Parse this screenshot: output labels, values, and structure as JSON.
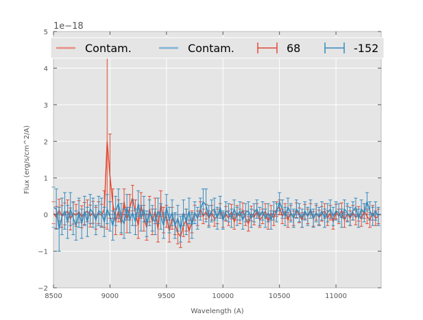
{
  "chart_data": {
    "type": "line",
    "title": "",
    "xlabel": "Wavelength (A)",
    "ylabel": "Flux (erg/s/cm^2/A)",
    "offset_label": "1e−18",
    "xlim": [
      8500,
      11400
    ],
    "ylim": [
      -2,
      5
    ],
    "xticks": [
      8500,
      9000,
      9500,
      10000,
      10500,
      11000
    ],
    "xtick_labels": [
      "8500",
      "9000",
      "9500",
      "10000",
      "10500",
      "11000"
    ],
    "yticks": [
      -2,
      -1,
      0,
      1,
      2,
      3,
      4,
      5
    ],
    "ytick_labels": [
      "−2",
      "−1",
      "0",
      "1",
      "2",
      "3",
      "4",
      "5"
    ],
    "grid": true,
    "legend_position": "top",
    "colors": {
      "red": "#e24a33",
      "blue": "#348abd",
      "red_light": "#e88d7d",
      "blue_light": "#7fb2d6"
    },
    "legend": [
      {
        "label": "Contam.",
        "kind": "line",
        "color": "#e88d7d"
      },
      {
        "label": "Contam.",
        "kind": "line",
        "color": "#7fb2d6"
      },
      {
        "label": "68",
        "kind": "errorbar",
        "color": "#e24a33"
      },
      {
        "label": "-152",
        "kind": "errorbar",
        "color": "#348abd"
      }
    ],
    "series": [
      {
        "name": "68",
        "color": "#e24a33",
        "x": [
          8500,
          8525,
          8550,
          8575,
          8600,
          8625,
          8650,
          8675,
          8700,
          8725,
          8750,
          8775,
          8800,
          8825,
          8850,
          8875,
          8900,
          8925,
          8950,
          8975,
          9000,
          9025,
          9050,
          9075,
          9100,
          9125,
          9150,
          9175,
          9200,
          9225,
          9250,
          9275,
          9300,
          9325,
          9350,
          9375,
          9400,
          9425,
          9450,
          9475,
          9500,
          9525,
          9550,
          9575,
          9600,
          9625,
          9650,
          9675,
          9700,
          9725,
          9750,
          9775,
          9800,
          9825,
          9850,
          9875,
          9900,
          9925,
          9950,
          9975,
          10000,
          10025,
          10050,
          10075,
          10100,
          10125,
          10150,
          10175,
          10200,
          10225,
          10250,
          10275,
          10300,
          10325,
          10350,
          10375,
          10400,
          10425,
          10450,
          10475,
          10500,
          10525,
          10550,
          10575,
          10600,
          10625,
          10650,
          10675,
          10700,
          10725,
          10750,
          10775,
          10800,
          10825,
          10850,
          10875,
          10900,
          10925,
          10950,
          10975,
          11000,
          11025,
          11050,
          11075,
          11100,
          11125,
          11150,
          11175,
          11200,
          11225,
          11250,
          11275,
          11300,
          11325,
          11350,
          11375
        ],
        "y": [
          0.05,
          -0.08,
          0.12,
          -0.05,
          0.02,
          0.1,
          -0.12,
          0.04,
          -0.02,
          0.08,
          -0.06,
          0.03,
          0.1,
          -0.04,
          0.06,
          -0.1,
          0.05,
          -0.02,
          0.15,
          2.0,
          1.05,
          0.3,
          -0.2,
          0.1,
          -0.25,
          0.35,
          -0.15,
          0.2,
          0.45,
          0.05,
          -0.3,
          0.25,
          -0.1,
          -0.35,
          0.15,
          -0.2,
          0.1,
          -0.4,
          0.3,
          -0.15,
          -0.05,
          -0.45,
          -0.1,
          -0.25,
          -0.5,
          -0.6,
          -0.3,
          -0.15,
          -0.45,
          -0.2,
          0.05,
          -0.1,
          0.15,
          -0.05,
          0.08,
          -0.1,
          0.05,
          -0.12,
          -0.05,
          0.1,
          -0.15,
          0.02,
          -0.1,
          0.08,
          -0.2,
          0.05,
          -0.05,
          0.12,
          -0.1,
          -0.25,
          0.03,
          -0.08,
          0.1,
          -0.15,
          -0.05,
          0.1,
          -0.2,
          0.05,
          -0.1,
          0.15,
          0.2,
          -0.05,
          0.1,
          -0.15,
          0.05,
          -0.1,
          0.12,
          -0.02,
          -0.15,
          0.08,
          -0.05,
          0.1,
          -0.12,
          0.05,
          -0.08,
          0.02,
          0.1,
          -0.1,
          0.05,
          -0.2,
          0.08,
          -0.05,
          0.12,
          -0.15,
          0.03,
          -0.1,
          0.05,
          -0.08,
          0.02,
          -0.12,
          0.1,
          -0.05,
          -0.15,
          0.05,
          -0.1,
          -0.05
        ],
        "err": [
          0.3,
          0.3,
          0.3,
          0.3,
          0.3,
          0.3,
          0.3,
          0.3,
          0.3,
          0.3,
          0.3,
          0.3,
          0.3,
          0.3,
          0.3,
          0.3,
          0.3,
          0.3,
          0.5,
          2.4,
          1.15,
          0.4,
          0.35,
          0.3,
          0.3,
          0.35,
          0.35,
          0.35,
          0.35,
          0.35,
          0.35,
          0.35,
          0.35,
          0.35,
          0.35,
          0.35,
          0.35,
          0.35,
          0.35,
          0.35,
          0.3,
          0.3,
          0.3,
          0.3,
          0.3,
          0.3,
          0.3,
          0.3,
          0.3,
          0.3,
          0.2,
          0.2,
          0.2,
          0.2,
          0.2,
          0.2,
          0.2,
          0.2,
          0.2,
          0.2,
          0.2,
          0.2,
          0.2,
          0.2,
          0.2,
          0.2,
          0.2,
          0.2,
          0.2,
          0.2,
          0.2,
          0.2,
          0.2,
          0.2,
          0.2,
          0.2,
          0.2,
          0.2,
          0.2,
          0.2,
          0.2,
          0.2,
          0.2,
          0.2,
          0.2,
          0.2,
          0.2,
          0.2,
          0.2,
          0.2,
          0.2,
          0.2,
          0.2,
          0.2,
          0.2,
          0.2,
          0.2,
          0.2,
          0.2,
          0.2,
          0.2,
          0.2,
          0.2,
          0.2,
          0.2,
          0.2,
          0.2,
          0.2,
          0.2,
          0.2,
          0.2,
          0.2,
          0.2,
          0.2,
          0.2,
          0.2
        ]
      },
      {
        "name": "-152",
        "color": "#348abd",
        "x": [
          8500,
          8525,
          8550,
          8575,
          8600,
          8625,
          8650,
          8675,
          8700,
          8725,
          8750,
          8775,
          8800,
          8825,
          8850,
          8875,
          8900,
          8925,
          8950,
          8975,
          9000,
          9025,
          9050,
          9075,
          9100,
          9125,
          9150,
          9175,
          9200,
          9225,
          9250,
          9275,
          9300,
          9325,
          9350,
          9375,
          9400,
          9425,
          9450,
          9475,
          9500,
          9525,
          9550,
          9575,
          9600,
          9625,
          9650,
          9675,
          9700,
          9725,
          9750,
          9775,
          9800,
          9825,
          9850,
          9875,
          9900,
          9925,
          9950,
          9975,
          10000,
          10025,
          10050,
          10075,
          10100,
          10125,
          10150,
          10175,
          10200,
          10225,
          10250,
          10275,
          10300,
          10325,
          10350,
          10375,
          10400,
          10425,
          10450,
          10475,
          10500,
          10525,
          10550,
          10575,
          10600,
          10625,
          10650,
          10675,
          10700,
          10725,
          10750,
          10775,
          10800,
          10825,
          10850,
          10875,
          10900,
          10925,
          10950,
          10975,
          11000,
          11025,
          11050,
          11075,
          11100,
          11125,
          11150,
          11175,
          11200,
          11225,
          11250,
          11275,
          11300,
          11325,
          11350,
          11375
        ],
        "y": [
          0.2,
          0.15,
          -0.4,
          -0.05,
          0.1,
          -0.2,
          0.15,
          -0.1,
          -0.3,
          0.05,
          -0.25,
          0.1,
          -0.2,
          0.15,
          0.05,
          -0.15,
          0.1,
          0.05,
          -0.2,
          0.15,
          -0.05,
          -0.3,
          0.1,
          0.3,
          -0.1,
          -0.25,
          0.2,
          -0.15,
          0.05,
          -0.2,
          0.3,
          -0.1,
          0.15,
          -0.25,
          0.05,
          -0.1,
          -0.2,
          0.1,
          -0.05,
          -0.3,
          0.2,
          -0.15,
          0.05,
          -0.3,
          -0.1,
          -0.4,
          0.05,
          -0.2,
          0.1,
          -0.3,
          0.05,
          -0.1,
          0.15,
          0.35,
          0.25,
          -0.05,
          0.1,
          0.15,
          -0.1,
          0.2,
          -0.15,
          0.1,
          0.05,
          -0.1,
          0.15,
          -0.05,
          0.1,
          -0.15,
          0.05,
          0.1,
          -0.1,
          0.05,
          0.15,
          -0.05,
          0.1,
          -0.1,
          0.05,
          -0.15,
          0.1,
          0.05,
          0.35,
          0.15,
          -0.05,
          0.2,
          0.05,
          -0.1,
          0.15,
          0.05,
          -0.1,
          0.1,
          -0.05,
          0.15,
          -0.1,
          0.05,
          -0.05,
          0.1,
          -0.1,
          0.05,
          0.15,
          -0.05,
          0.1,
          0.05,
          -0.1,
          0.15,
          0.05,
          -0.05,
          0.1,
          0.2,
          -0.1,
          0.15,
          0.05,
          0.35,
          0.1,
          -0.05,
          0.1,
          -0.05
        ],
        "err": [
          0.55,
          0.55,
          0.6,
          0.5,
          0.5,
          0.45,
          0.45,
          0.45,
          0.4,
          0.4,
          0.4,
          0.4,
          0.4,
          0.4,
          0.4,
          0.4,
          0.4,
          0.4,
          0.4,
          0.4,
          0.4,
          0.4,
          0.4,
          0.4,
          0.4,
          0.4,
          0.35,
          0.35,
          0.35,
          0.35,
          0.35,
          0.35,
          0.35,
          0.35,
          0.35,
          0.35,
          0.35,
          0.35,
          0.35,
          0.35,
          0.35,
          0.35,
          0.35,
          0.35,
          0.35,
          0.35,
          0.35,
          0.35,
          0.35,
          0.35,
          0.3,
          0.3,
          0.3,
          0.35,
          0.45,
          0.3,
          0.3,
          0.3,
          0.3,
          0.3,
          0.25,
          0.25,
          0.25,
          0.25,
          0.25,
          0.25,
          0.25,
          0.25,
          0.25,
          0.25,
          0.25,
          0.25,
          0.25,
          0.25,
          0.25,
          0.25,
          0.25,
          0.25,
          0.25,
          0.25,
          0.25,
          0.25,
          0.25,
          0.25,
          0.25,
          0.25,
          0.25,
          0.25,
          0.25,
          0.25,
          0.25,
          0.25,
          0.25,
          0.25,
          0.25,
          0.25,
          0.25,
          0.25,
          0.25,
          0.25,
          0.25,
          0.25,
          0.25,
          0.25,
          0.25,
          0.25,
          0.25,
          0.25,
          0.25,
          0.25,
          0.25,
          0.25,
          0.25,
          0.25,
          0.25,
          0.25
        ]
      }
    ],
    "contamination": [
      {
        "name": "Contam.",
        "color": "#e88d7d",
        "x": [
          8500,
          11400
        ],
        "y": [
          0.0,
          0.0
        ]
      },
      {
        "name": "Contam.",
        "color": "#7fb2d6",
        "x": [
          8500,
          11400
        ],
        "y": [
          0.0,
          0.0
        ]
      }
    ]
  }
}
